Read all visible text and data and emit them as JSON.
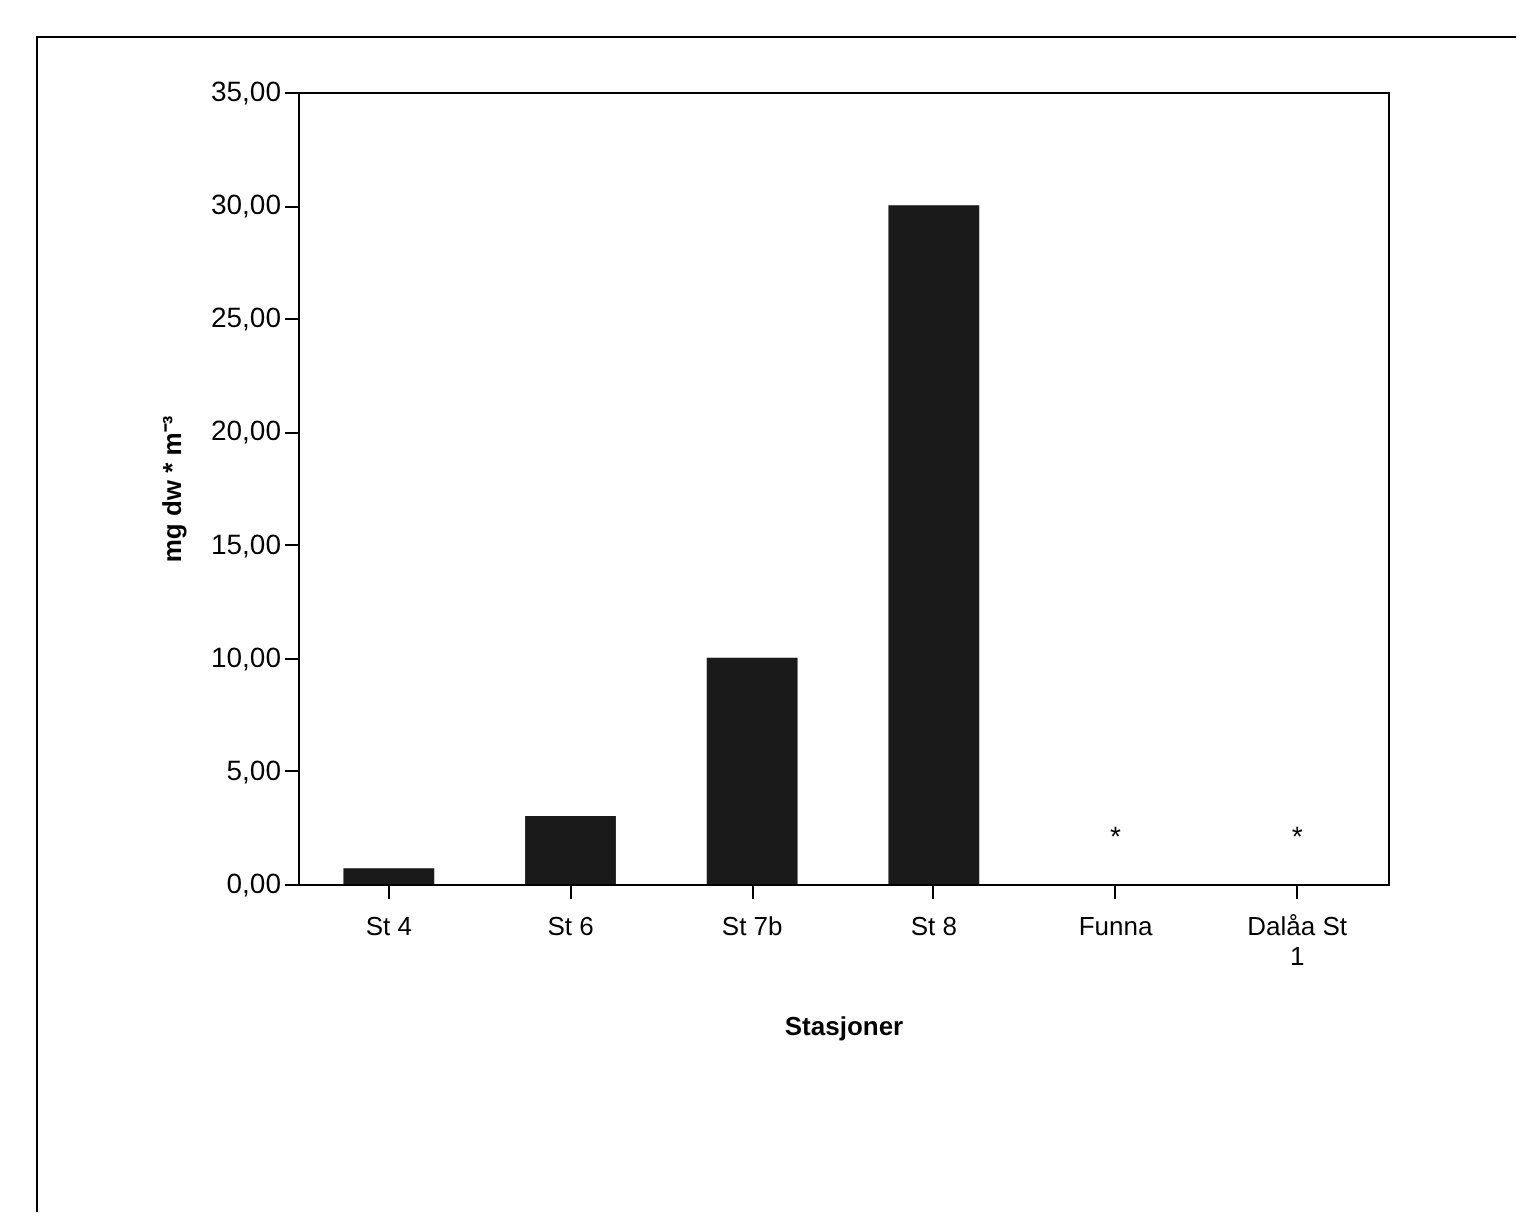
{
  "chart_data": {
    "type": "bar",
    "xlabel": "Stasjoner",
    "ylabel": "mg dw * m⁻³",
    "categories": [
      "St 4",
      "St 6",
      "St 7b",
      "St 8",
      "Funna",
      "Dalåa St 1"
    ],
    "values": [
      0.7,
      3.0,
      10.0,
      30.0,
      null,
      null
    ],
    "color": "#1a1a1a",
    "value_labels": [
      null,
      null,
      null,
      null,
      "*",
      "*"
    ],
    "ylim": [
      0,
      35
    ],
    "yticks": [
      {
        "value": 0,
        "label": "0,00"
      },
      {
        "value": 5,
        "label": "5,00"
      },
      {
        "value": 10,
        "label": "10,00"
      },
      {
        "value": 15,
        "label": "15,00"
      },
      {
        "value": 20,
        "label": "20,00"
      },
      {
        "value": 25,
        "label": "25,00"
      },
      {
        "value": 30,
        "label": "30,00"
      },
      {
        "value": 35,
        "label": "35,00"
      }
    ],
    "grid": false
  }
}
